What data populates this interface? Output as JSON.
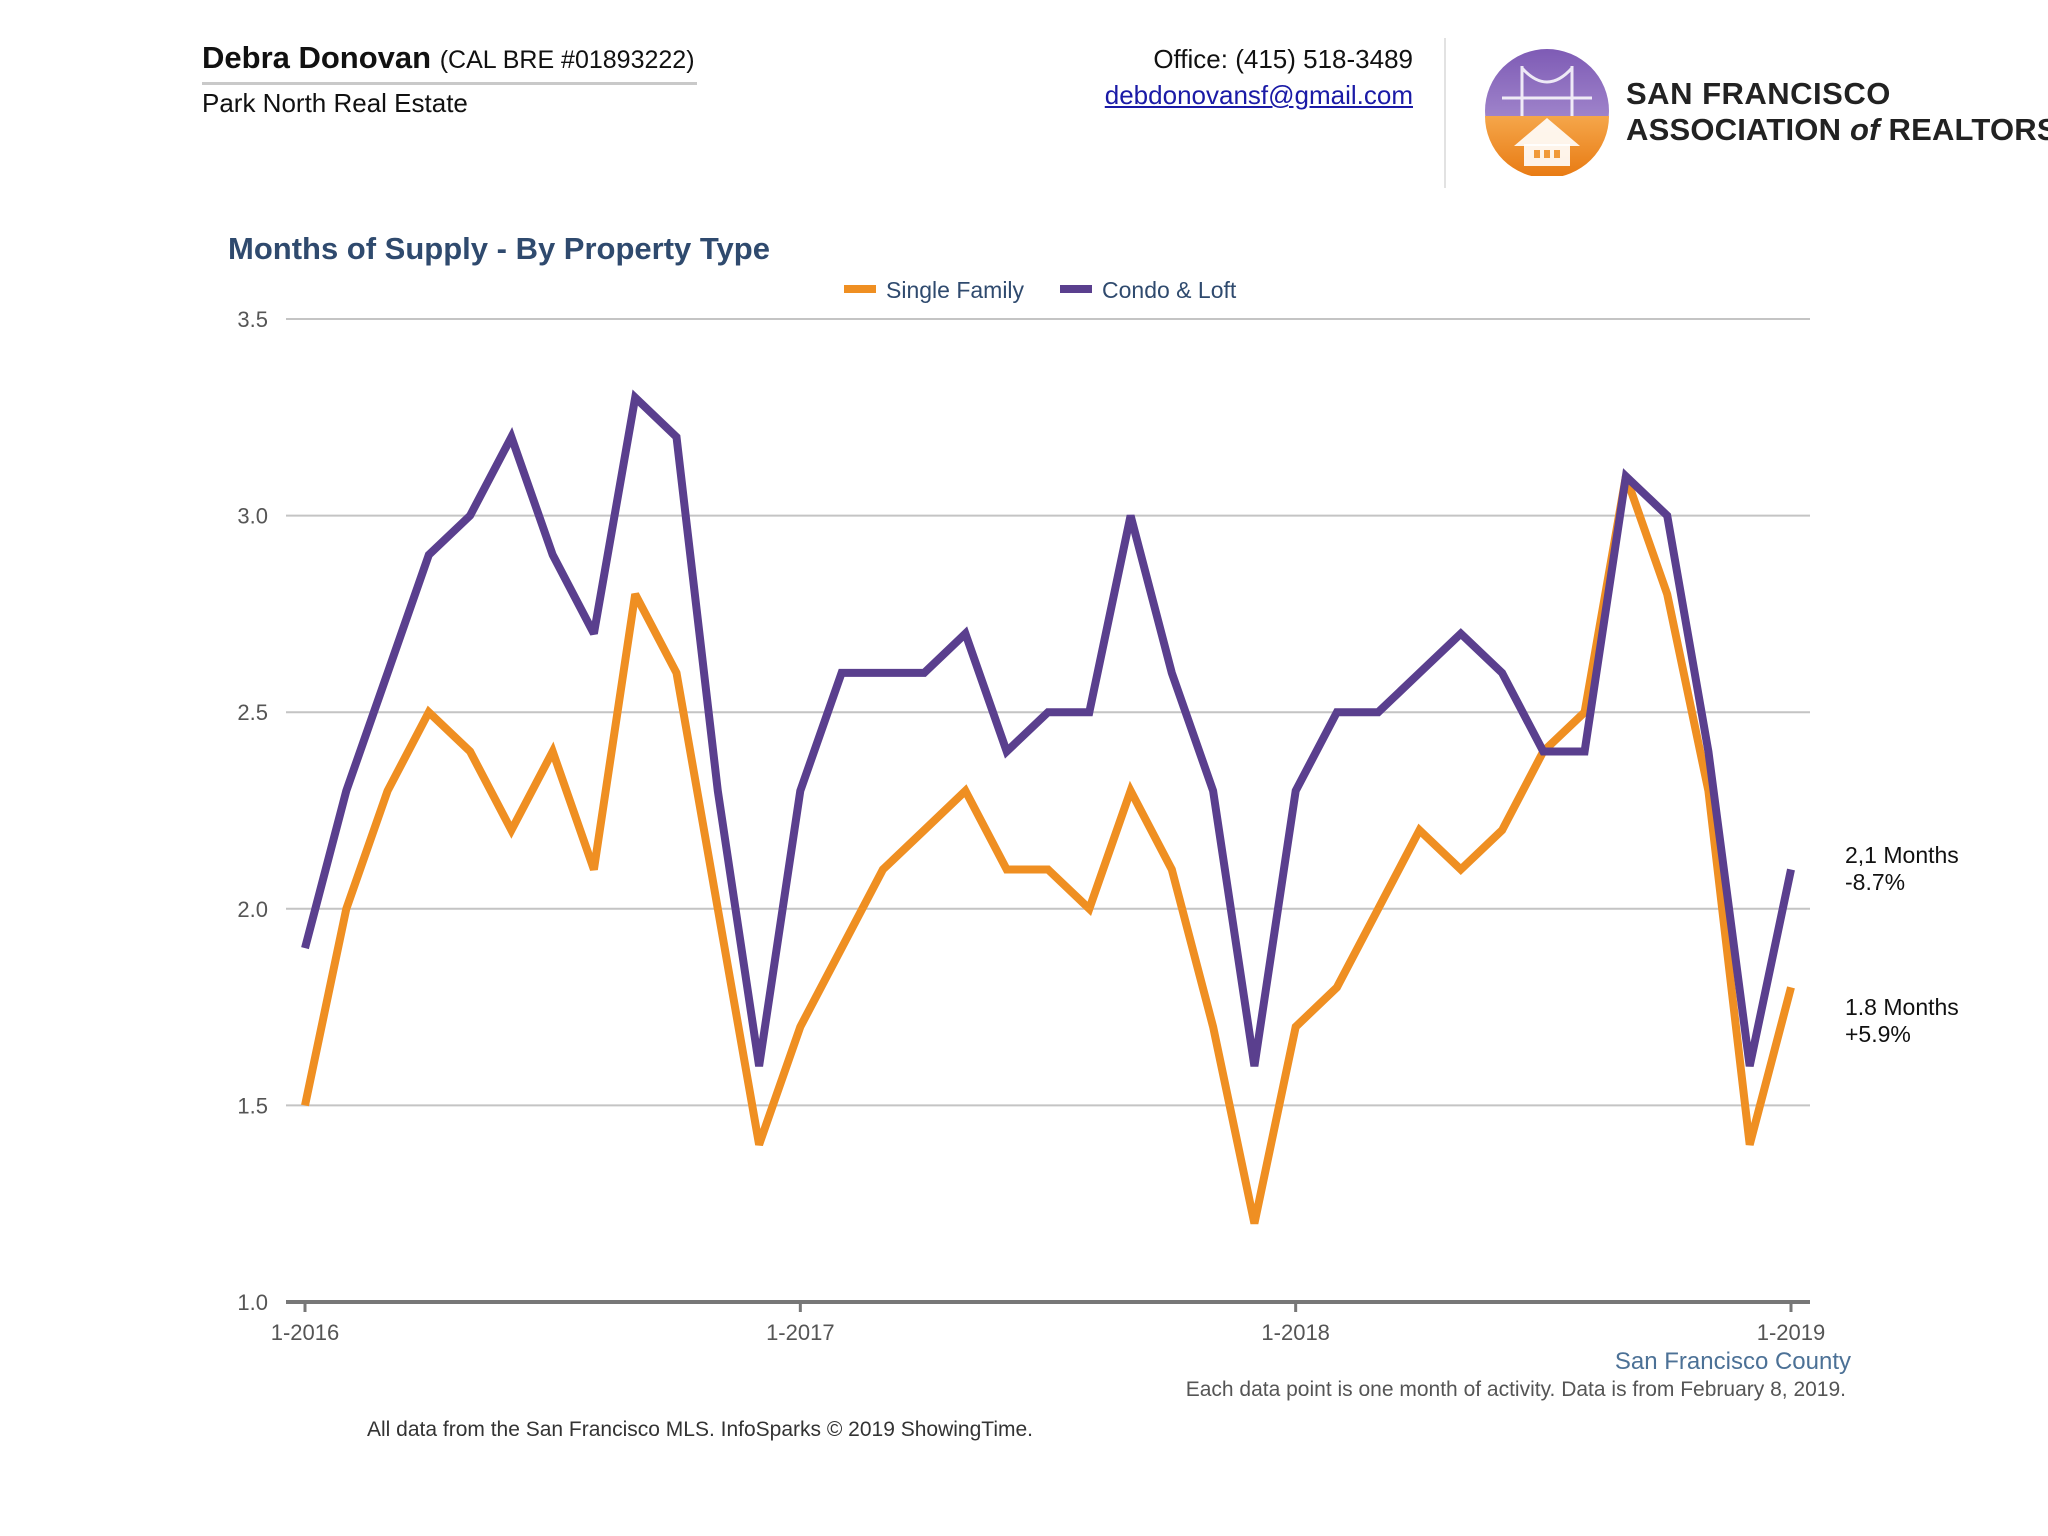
{
  "header": {
    "agent_name": "Debra Donovan",
    "agent_license": "(CAL BRE #01893222)",
    "agent_company": "Park North Real Estate",
    "office_phone": "Office: (415) 518-3489",
    "email": "debdonovansf@gmail.com",
    "logo_line1": "SAN FRANCISCO",
    "logo_line2_a": "ASSOCIATION ",
    "logo_line2_b": "of",
    "logo_line2_c": " REALTORS",
    "logo_reg": "®"
  },
  "chart_data": {
    "type": "line",
    "title": "Months of Supply - By Property Type",
    "xlabel": "",
    "ylabel": "",
    "ylim": [
      1.0,
      3.5
    ],
    "yticks": [
      "1.0",
      "1.5",
      "2.0",
      "2.5",
      "3.0",
      "3.5"
    ],
    "xticks": [
      {
        "label": "1-2016",
        "index": 0
      },
      {
        "label": "1-2017",
        "index": 12
      },
      {
        "label": "1-2018",
        "index": 24
      },
      {
        "label": "1-2019",
        "index": 36
      }
    ],
    "x": [
      "1-2016",
      "2-2016",
      "3-2016",
      "4-2016",
      "5-2016",
      "6-2016",
      "7-2016",
      "8-2016",
      "9-2016",
      "10-2016",
      "11-2016",
      "12-2016",
      "1-2017",
      "2-2017",
      "3-2017",
      "4-2017",
      "5-2017",
      "6-2017",
      "7-2017",
      "8-2017",
      "9-2017",
      "10-2017",
      "11-2017",
      "12-2017",
      "1-2018",
      "2-2018",
      "3-2018",
      "4-2018",
      "5-2018",
      "6-2018",
      "7-2018",
      "8-2018",
      "9-2018",
      "10-2018",
      "11-2018",
      "12-2018",
      "1-2019"
    ],
    "legend_position": "top-center",
    "grid": true,
    "series": [
      {
        "name": "Single Family",
        "color": "#ef8f22",
        "values": [
          1.5,
          2.0,
          2.3,
          2.5,
          2.4,
          2.2,
          2.4,
          2.1,
          2.8,
          2.6,
          2.0,
          1.4,
          1.7,
          1.9,
          2.1,
          2.2,
          2.3,
          2.1,
          2.1,
          2.0,
          2.3,
          2.1,
          1.7,
          1.2,
          1.7,
          1.8,
          2.0,
          2.2,
          2.1,
          2.2,
          2.4,
          2.5,
          3.1,
          2.8,
          2.3,
          1.4,
          1.8
        ],
        "end_label_1": "1.8 Months",
        "end_label_2": "+5.9%"
      },
      {
        "name": "Condo & Loft",
        "color": "#5a3f8e",
        "values": [
          1.9,
          2.3,
          2.6,
          2.9,
          3.0,
          3.2,
          2.9,
          2.7,
          3.3,
          3.2,
          2.3,
          1.6,
          2.3,
          2.6,
          2.6,
          2.6,
          2.7,
          2.4,
          2.5,
          2.5,
          3.0,
          2.6,
          2.3,
          1.6,
          2.3,
          2.5,
          2.5,
          2.6,
          2.7,
          2.6,
          2.4,
          2.4,
          3.1,
          3.0,
          2.4,
          1.6,
          2.1
        ],
        "end_label_1": "2,1 Months",
        "end_label_2": "-8.7%"
      }
    ],
    "region_label": "San Francisco County"
  },
  "footer": {
    "note": "Each data point is one month of activity. Data is from February 8, 2019.",
    "credit": "All data from the San Francisco MLS. InfoSparks © 2019 ShowingTime."
  }
}
